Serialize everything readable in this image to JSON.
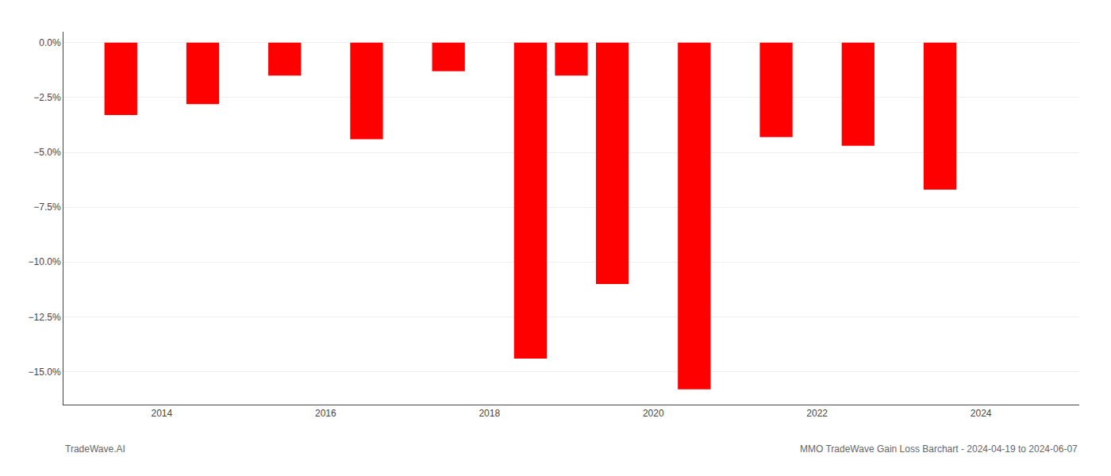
{
  "chart_data": {
    "type": "bar",
    "x": [
      2013.5,
      2014.5,
      2015.5,
      2016.5,
      2017.5,
      2018.5,
      2019.0,
      2019.5,
      2020.5,
      2021.5,
      2022.5,
      2023.5
    ],
    "values": [
      -3.3,
      -2.8,
      -1.5,
      -4.4,
      -1.3,
      -14.4,
      -1.5,
      -11.0,
      -15.8,
      -4.3,
      -4.7,
      -6.7
    ],
    "color": "#ff0000",
    "xlim": [
      2012.8,
      2025.2
    ],
    "xticks": [
      2014,
      2016,
      2018,
      2020,
      2022,
      2024
    ],
    "ylim": [
      -16.5,
      0.5
    ],
    "yticks": [
      {
        "value": 0.0,
        "label": "0.0%"
      },
      {
        "value": -2.5,
        "label": "−2.5%"
      },
      {
        "value": -5.0,
        "label": "−5.0%"
      },
      {
        "value": -7.5,
        "label": "−7.5%"
      },
      {
        "value": -10.0,
        "label": "−10.0%"
      },
      {
        "value": -12.5,
        "label": "−12.5%"
      },
      {
        "value": -15.0,
        "label": "−15.0%"
      }
    ],
    "grid": true,
    "annotations": [
      "TradeWave.AI",
      "MMO TradeWave Gain Loss Barchart - 2024-04-19 to 2024-06-07"
    ]
  }
}
